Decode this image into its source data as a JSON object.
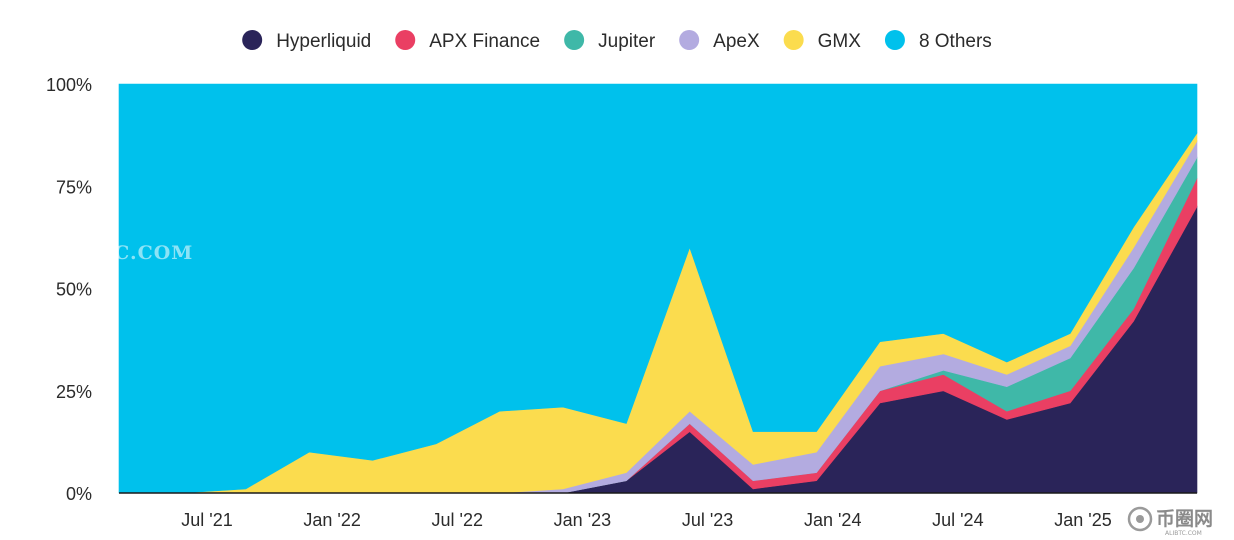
{
  "watermark": "ALIBTC.COM",
  "logo": {
    "text": "币圈网",
    "subtext": "ALIBTC.COM"
  },
  "chart_data": {
    "type": "area",
    "stacked": true,
    "normalized_percent": true,
    "title": "",
    "xlabel": "",
    "ylabel": "",
    "ylim": [
      0,
      100
    ],
    "y_ticks": [
      "0%",
      "25%",
      "50%",
      "75%",
      "100%"
    ],
    "x_ticks": [
      "Jul '21",
      "Jan '22",
      "Jul '22",
      "Jan '23",
      "Jul '23",
      "Jan '24",
      "Jul '24",
      "Jan '25"
    ],
    "legend_position": "top-center",
    "grid": false,
    "x": [
      "Feb '21",
      "Jul '21",
      "Oct '21",
      "Jan '22",
      "Apr '22",
      "Jul '22",
      "Oct '22",
      "Jan '23",
      "Apr '23",
      "Jun '23",
      "Jul '23",
      "Oct '23",
      "Jan '24",
      "Apr '24",
      "Jul '24",
      "Oct '24",
      "Jan '25",
      "Apr '25"
    ],
    "series": [
      {
        "name": "Hyperliquid",
        "color": "#2a2459",
        "values": [
          0,
          0,
          0,
          0,
          0,
          0,
          0,
          0,
          3,
          15,
          1,
          3,
          22,
          25,
          18,
          22,
          42,
          70
        ]
      },
      {
        "name": "APX Finance",
        "color": "#ea3f63",
        "values": [
          0,
          0,
          0,
          0,
          0,
          0,
          0,
          0,
          0,
          2,
          2,
          2,
          3,
          4,
          2,
          3,
          3,
          7
        ]
      },
      {
        "name": "Jupiter",
        "color": "#3fb8a8",
        "values": [
          0,
          0,
          0,
          0,
          0,
          0,
          0,
          0,
          0,
          0,
          0,
          0,
          0,
          1,
          6,
          8,
          10,
          5
        ]
      },
      {
        "name": "ApeX",
        "color": "#b3abe0",
        "values": [
          0,
          0,
          0,
          0,
          0,
          0,
          0,
          1,
          2,
          3,
          4,
          5,
          6,
          4,
          3,
          3,
          5,
          4
        ]
      },
      {
        "name": "GMX",
        "color": "#fbdc4e",
        "values": [
          0,
          0,
          1,
          10,
          8,
          12,
          20,
          20,
          12,
          40,
          8,
          5,
          6,
          5,
          3,
          3,
          5,
          2
        ]
      },
      {
        "name": "8 Others",
        "color": "#00c1ec",
        "values": [
          100,
          100,
          99,
          90,
          92,
          88,
          80,
          79,
          83,
          40,
          85,
          85,
          63,
          61,
          68,
          61,
          35,
          12
        ]
      }
    ]
  }
}
